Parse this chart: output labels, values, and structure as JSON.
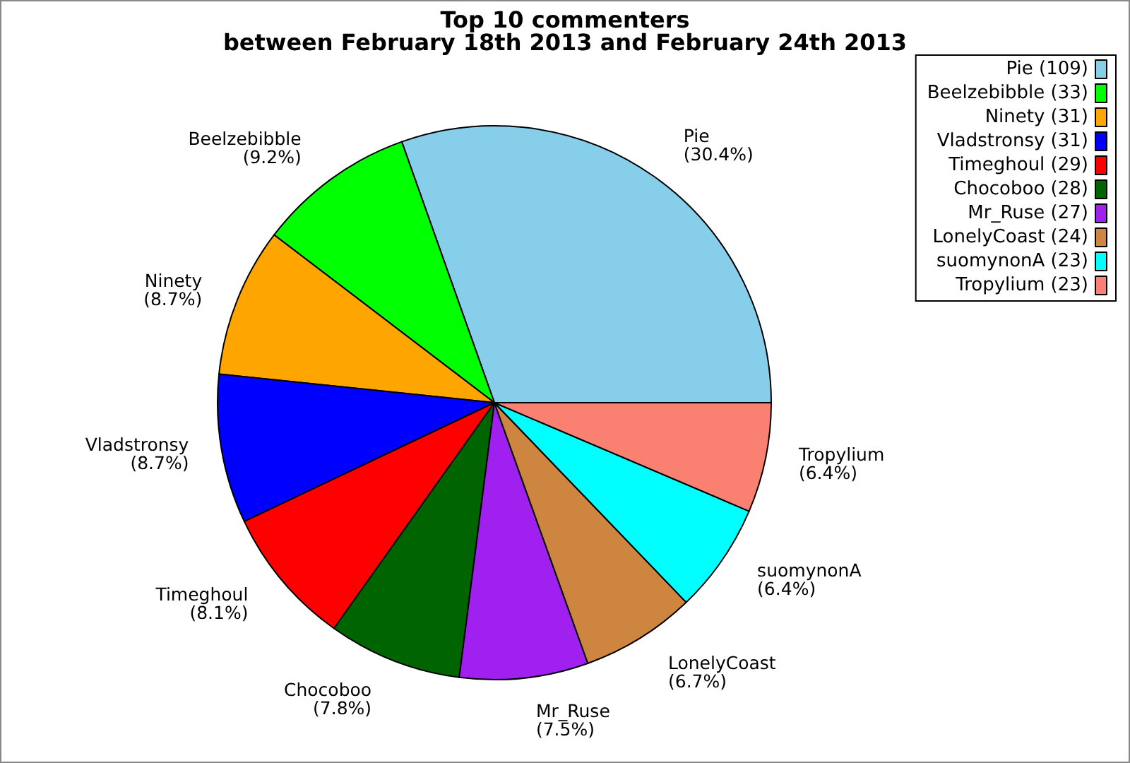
{
  "chart_data": {
    "type": "pie",
    "title": "Top 10 commenters",
    "subtitle": "between February 18th 2013 and February 24th 2013",
    "categories": [
      "Pie (109)",
      "Beelzebibble (33)",
      "Ninety (31)",
      "Vladstronsy (31)",
      "Timeghoul (29)",
      "Chocoboo (28)",
      "Mr_Ruse (27)",
      "LonelyCoast (24)",
      "suomynonA (23)",
      "Tropylium (23)"
    ],
    "values": [
      30.4,
      9.2,
      8.7,
      8.7,
      8.1,
      7.8,
      7.5,
      6.7,
      6.4,
      6.4
    ],
    "value_labels": [
      "Pie\n(30.4%)",
      "Beelzebibble\n(9.2%)",
      "Ninety\n(8.7%)",
      "Vladstronsy\n(8.7%)",
      "Timeghoul\n(8.1%)",
      "Chocoboo\n(7.8%)",
      "Mr_Ruse\n(7.5%)",
      "LonelyCoast\n(6.7%)",
      "suomynonA\n(6.4%)",
      "Tropylium\n(6.4%)"
    ],
    "colors": [
      "#87ceeb",
      "#00ff00",
      "#ffa500",
      "#0000ff",
      "#ff0000",
      "#006400",
      "#a020f0",
      "#cd853f",
      "#00ffff",
      "#fa8072"
    ],
    "legend": "top right"
  }
}
